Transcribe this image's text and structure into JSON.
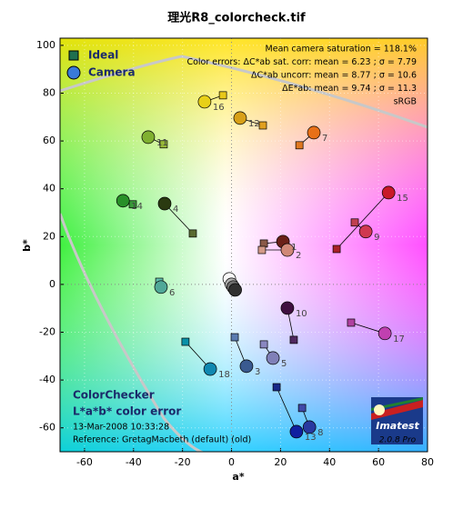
{
  "chart_data": {
    "type": "scatter",
    "title": "理光R8_colorcheck.tif",
    "x_label": "a*",
    "y_label": "b*",
    "xlim": [
      -70,
      80
    ],
    "ylim": [
      -70,
      103
    ],
    "xticks": [
      -60,
      -40,
      -20,
      0,
      20,
      40,
      60,
      80
    ],
    "yticks": [
      -60,
      -40,
      -20,
      0,
      20,
      40,
      60,
      80,
      100
    ],
    "grid": true,
    "legend": "upper left",
    "point_labels": [
      "1",
      "2",
      "3",
      "4",
      "5",
      "6",
      "7",
      "8",
      "9",
      "10",
      "11",
      "12",
      "13",
      "14",
      "15",
      "16",
      "17",
      "18",
      null,
      null,
      null,
      null
    ],
    "series": [
      {
        "name": "Ideal",
        "color": "#1f6f4f",
        "marker": "square",
        "x": [
          13.2,
          12.4,
          1.3,
          -15.8,
          13.2,
          -29.5,
          27.7,
          28.8,
          50.3,
          25.4,
          -27.7,
          12.8,
          18.4,
          -40.3,
          42.9,
          -3.5,
          48.8,
          -18.8,
          0,
          0,
          0,
          0
        ],
        "values": [
          17.1,
          14.4,
          -22.1,
          21.3,
          -25.1,
          1.1,
          58.2,
          -51.7,
          25.9,
          -23.2,
          58.6,
          66.5,
          -43.0,
          33.5,
          14.8,
          79.1,
          -16.0,
          -24.0,
          0,
          0,
          0,
          0
        ],
        "colors": [
          "#8a5a48",
          "#d49a88",
          "#5a7ab0",
          "#5a6a30",
          "#8a88c0",
          "#60c0b0",
          "#e07820",
          "#4048a8",
          "#c04050",
          "#502860",
          "#98b838",
          "#e0a020",
          "#182888",
          "#389838",
          "#a82028",
          "#e8c818",
          "#b040a0",
          "#0890a8",
          "#f0f0f0",
          "#a0a0a0",
          "#606060",
          "#202020"
        ]
      },
      {
        "name": "Camera",
        "color": "#3a7ad8",
        "marker": "circle",
        "x": [
          21.0,
          22.8,
          6.1,
          -27.3,
          16.9,
          -28.8,
          33.6,
          31.8,
          54.8,
          22.8,
          -34.0,
          3.5,
          26.5,
          -44.3,
          64.1,
          -11.0,
          62.6,
          -8.7,
          -0.9,
          0.0,
          0.7,
          1.5
        ],
        "values": [
          17.9,
          14.4,
          -34.2,
          33.8,
          -30.8,
          -1.1,
          63.5,
          -59.7,
          22.1,
          -9.9,
          61.6,
          69.6,
          -61.6,
          35.0,
          38.4,
          76.4,
          -20.5,
          -35.4,
          2.3,
          0.0,
          -1.1,
          -2.3
        ],
        "colors": [
          "#6a2018",
          "#d08878",
          "#3a5a90",
          "#2a3a10",
          "#8080b8",
          "#50a898",
          "#e87018",
          "#2838a0",
          "#d03850",
          "#401040",
          "#80b030",
          "#d8a018",
          "#1020a0",
          "#289028",
          "#c81828",
          "#e8d018",
          "#c040b0",
          "#1088b0",
          "#f8f8f8",
          "#b0b0b0",
          "#707070",
          "#303030"
        ]
      }
    ],
    "annotations": [
      "Mean camera saturation = 118.1%",
      "Color errors:  ΔC*ab sat. corr:  mean = 6.23 ;  σ = 7.79",
      "ΔC*ab uncorr:  mean = 8.77 ;  σ = 10.6",
      "ΔE*ab:  mean = 9.74 ;  σ = 11.3",
      "sRGB"
    ],
    "footer": [
      "ColorChecker",
      "L*a*b* color error",
      "13-Mar-2008 10:33:28",
      "Reference: GretagMacbeth (default) (old)"
    ],
    "logo": "Imatest",
    "version": "2.0.8  Pro"
  }
}
